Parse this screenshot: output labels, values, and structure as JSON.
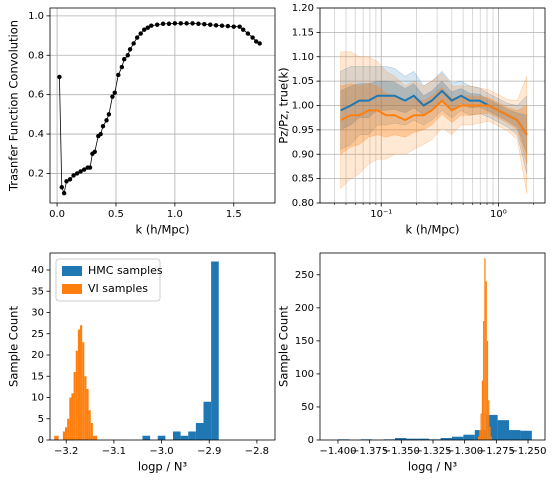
{
  "chart_data": [
    {
      "type": "line",
      "x_label": "k (h/Mpc)",
      "y_label": "Trasnfer Function Convolution",
      "grid": true,
      "color": "#000000",
      "x": [
        0.02,
        0.04,
        0.06,
        0.08,
        0.11,
        0.14,
        0.17,
        0.2,
        0.23,
        0.26,
        0.28,
        0.3,
        0.32,
        0.35,
        0.37,
        0.39,
        0.42,
        0.44,
        0.47,
        0.49,
        0.52,
        0.55,
        0.57,
        0.6,
        0.62,
        0.65,
        0.68,
        0.71,
        0.74,
        0.77,
        0.8,
        0.85,
        0.9,
        0.95,
        1.0,
        1.05,
        1.1,
        1.15,
        1.2,
        1.25,
        1.3,
        1.35,
        1.4,
        1.45,
        1.5,
        1.55,
        1.58,
        1.62,
        1.66,
        1.69,
        1.72
      ],
      "values": [
        0.69,
        0.13,
        0.1,
        0.16,
        0.17,
        0.19,
        0.2,
        0.21,
        0.22,
        0.23,
        0.23,
        0.3,
        0.31,
        0.39,
        0.4,
        0.44,
        0.47,
        0.5,
        0.59,
        0.61,
        0.7,
        0.74,
        0.78,
        0.8,
        0.83,
        0.86,
        0.89,
        0.91,
        0.93,
        0.94,
        0.95,
        0.955,
        0.96,
        0.96,
        0.962,
        0.962,
        0.962,
        0.962,
        0.96,
        0.958,
        0.955,
        0.952,
        0.95,
        0.948,
        0.945,
        0.945,
        0.93,
        0.91,
        0.89,
        0.87,
        0.86
      ],
      "xlim": [
        -0.06,
        1.85
      ],
      "ylim": [
        0.05,
        1.04
      ],
      "xticks": [
        {
          "value": 0,
          "label": "0.0"
        },
        0.5,
        {
          "value": 1,
          "label": "1.0"
        },
        1.5
      ],
      "yticks": [
        0.2,
        0.4,
        0.6,
        0.8,
        {
          "value": 1,
          "label": "1.0"
        }
      ]
    },
    {
      "type": "band",
      "x_label": "k (h/Mpc)",
      "y_label": "Pz/Pz, true(k)",
      "grid": true,
      "xlog": true,
      "x": [
        0.045,
        0.055,
        0.065,
        0.078,
        0.093,
        0.11,
        0.13,
        0.16,
        0.19,
        0.23,
        0.27,
        0.33,
        0.4,
        0.48,
        0.57,
        0.69,
        0.83,
        1.0,
        1.2,
        1.45,
        1.75
      ],
      "series": [
        {
          "color": "#1f77b4",
          "values": [
            0.99,
            1.0,
            1.01,
            1.01,
            1.02,
            1.02,
            1.02,
            1.01,
            1.02,
            1.0,
            1.01,
            1.03,
            1.01,
            1.02,
            1.01,
            1.01,
            1.0,
            0.99,
            0.98,
            0.97,
            0.94
          ],
          "sigma": [
            0.04,
            0.04,
            0.035,
            0.035,
            0.03,
            0.03,
            0.028,
            0.025,
            0.025,
            0.02,
            0.02,
            0.02,
            0.018,
            0.015,
            0.015,
            0.013,
            0.012,
            0.012,
            0.012,
            0.015,
            0.04
          ]
        },
        {
          "color": "#ff7f0e",
          "values": [
            0.97,
            0.98,
            0.98,
            0.99,
            0.99,
            0.98,
            0.98,
            0.97,
            0.98,
            0.98,
            0.99,
            1.01,
            0.99,
            1.0,
            1.0,
            1.0,
            1.0,
            0.99,
            0.98,
            0.97,
            0.94
          ],
          "sigma": [
            0.07,
            0.065,
            0.06,
            0.055,
            0.05,
            0.045,
            0.04,
            0.035,
            0.035,
            0.03,
            0.03,
            0.028,
            0.025,
            0.02,
            0.02,
            0.018,
            0.016,
            0.016,
            0.016,
            0.02,
            0.06
          ]
        }
      ],
      "xlim": [
        0.03,
        2.5
      ],
      "ylim": [
        0.8,
        1.2
      ],
      "xticks": [
        {
          "value": 0.1,
          "label": "10⁻¹"
        },
        {
          "value": 1,
          "label": "10⁰"
        }
      ],
      "xticks_minor": [
        0.04,
        0.05,
        0.06,
        0.07,
        0.08,
        0.09,
        0.2,
        0.3,
        0.4,
        0.5,
        0.6,
        0.7,
        0.8,
        0.9,
        2
      ],
      "yticks": [
        {
          "value": 0.8,
          "label": "0.80"
        },
        0.85,
        {
          "value": 0.9,
          "label": "0.90"
        },
        0.95,
        {
          "value": 1,
          "label": "1.00"
        },
        1.05,
        {
          "value": 1.1,
          "label": "1.10"
        },
        1.15,
        {
          "value": 1.2,
          "label": "1.20"
        }
      ]
    },
    {
      "type": "histogram",
      "x_label": "logp / N³",
      "y_label": "Sample Count",
      "legend": "upper left",
      "series": [
        {
          "name": "HMC samples",
          "color": "#1f77b4",
          "bins": [
            -3.232,
            -3.216,
            -3.2,
            -3.184,
            -3.168,
            -3.152,
            -3.136,
            -3.12,
            -3.104,
            -3.088,
            -3.072,
            -3.056,
            -3.04,
            -3.024,
            -3.008,
            -2.992,
            -2.976,
            -2.96,
            -2.944,
            -2.928,
            -2.912,
            -2.896,
            -2.88,
            -2.864,
            -2.848,
            -2.832,
            -2.816,
            -2.8
          ],
          "values": [
            0,
            0,
            0,
            0,
            0,
            0,
            0,
            0,
            0,
            0,
            0,
            0,
            1,
            0,
            1,
            0,
            2,
            1,
            2,
            4,
            9,
            42,
            0,
            0,
            0,
            0,
            0
          ]
        },
        {
          "name": "VI samples",
          "color": "#ff7f0e",
          "bins": [
            -3.225,
            -3.2205,
            -3.216,
            -3.2115,
            -3.207,
            -3.2025,
            -3.198,
            -3.1935,
            -3.189,
            -3.1845,
            -3.18,
            -3.1755,
            -3.171,
            -3.1665,
            -3.162,
            -3.1575,
            -3.153,
            -3.1485,
            -3.144,
            -3.1395,
            -3.135
          ],
          "values": [
            1,
            1,
            0,
            0,
            2,
            3,
            5,
            10,
            11,
            16,
            21,
            26,
            27,
            23,
            15,
            12,
            7,
            4,
            1,
            1
          ]
        }
      ],
      "xlim": [
        -3.234,
        -2.762
      ],
      "ylim": [
        0,
        44
      ],
      "xticks": [
        {
          "value": -3.2,
          "label": "−3.2"
        },
        {
          "value": -3.1,
          "label": "−3.1"
        },
        {
          "value": -3.0,
          "label": "−3.0"
        },
        {
          "value": -2.9,
          "label": "−2.9"
        },
        {
          "value": -2.8,
          "label": "−2.8"
        }
      ],
      "yticks": [
        0,
        5,
        10,
        15,
        20,
        25,
        30,
        35,
        40
      ]
    },
    {
      "type": "histogram",
      "x_label": "logq / N³",
      "y_label": "Sample Count",
      "series": [
        {
          "color": "#1f77b4",
          "bins": [
            -1.4,
            -1.391,
            -1.382,
            -1.373,
            -1.364,
            -1.355,
            -1.346,
            -1.337,
            -1.328,
            -1.319,
            -1.31,
            -1.301,
            -1.292,
            -1.283,
            -1.274,
            -1.265,
            -1.256,
            -1.247
          ],
          "values": [
            1,
            0,
            1,
            0,
            1,
            3,
            2,
            2,
            1,
            3,
            5,
            8,
            15,
            38,
            30,
            15,
            14
          ]
        },
        {
          "color": "#ff7f0e",
          "bins": [
            -1.2895,
            -1.2885,
            -1.2875,
            -1.2865,
            -1.2855,
            -1.2845,
            -1.2835,
            -1.2825,
            -1.2815,
            -1.2805,
            -1.2795,
            -1.2785
          ],
          "values": [
            5,
            15,
            40,
            90,
            180,
            275,
            240,
            150,
            60,
            20,
            5
          ]
        }
      ],
      "xlim": [
        -1.4142,
        -1.2366
      ],
      "ylim": [
        0,
        283
      ],
      "xticks": [
        {
          "value": -1.4,
          "label": "−1.400"
        },
        {
          "value": -1.375,
          "label": "−1.375"
        },
        {
          "value": -1.35,
          "label": "−1.350"
        },
        {
          "value": -1.325,
          "label": "−1.325"
        },
        {
          "value": -1.3,
          "label": "−1.300"
        },
        {
          "value": -1.275,
          "label": "−1.275"
        },
        {
          "value": -1.25,
          "label": "−1.250"
        }
      ],
      "yticks": [
        0,
        50,
        100,
        150,
        200,
        250
      ]
    }
  ]
}
